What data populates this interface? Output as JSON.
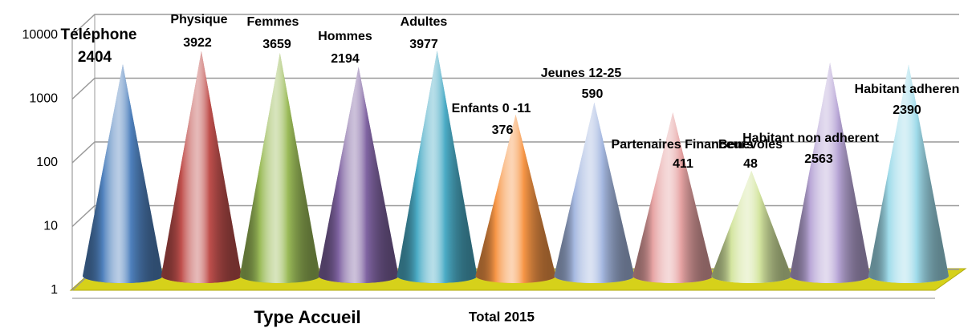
{
  "chart_data": {
    "type": "cone",
    "x_label": "Type Accueil",
    "series_name": "Total 2015",
    "categories": [
      "Téléphone",
      "Physique",
      "Femmes",
      "Hommes",
      "Adultes",
      "Enfants  0  -11",
      "Jeunes 12-25",
      "Partenaires Financeurs",
      "Benevoles",
      "Habitant non adherent",
      "Habitant adheren"
    ],
    "values": [
      2404,
      3922,
      3659,
      2194,
      3977,
      376,
      590,
      411,
      48,
      2563,
      2390
    ],
    "colors": [
      "#4f81bd",
      "#c0504d",
      "#9bbb59",
      "#8064a2",
      "#4bacc6",
      "#f79646",
      "#a5b8e0",
      "#e6a3a3",
      "#d4e5a0",
      "#b8a6d6",
      "#9fdbea"
    ],
    "ylim": [
      1,
      10000
    ],
    "yticks": [
      1,
      10,
      100,
      1000,
      10000
    ],
    "log_scale": true,
    "grid": true
  }
}
